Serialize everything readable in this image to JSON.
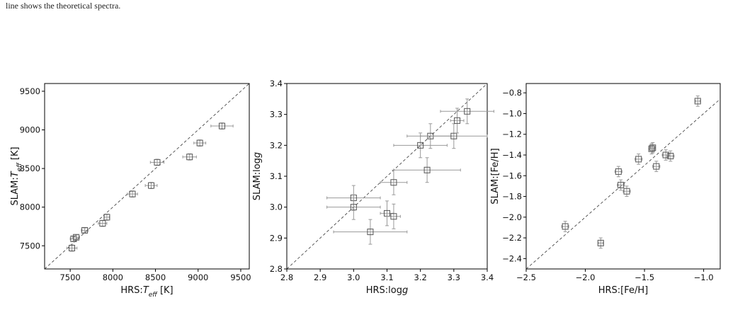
{
  "caption": "line shows the theoretical spectra.",
  "chart_data": [
    {
      "type": "scatter",
      "x_label": [
        "HRS:",
        "T",
        "eff",
        " [K]"
      ],
      "y_label": [
        "SLAM:",
        "T",
        "eff",
        " [K]"
      ],
      "xlim": [
        7200,
        9600
      ],
      "ylim": [
        7200,
        9600
      ],
      "xticks": [
        7500,
        8000,
        8500,
        9000,
        9500
      ],
      "yticks": [
        7500,
        8000,
        8500,
        9000,
        9500
      ],
      "series": [
        {
          "color": "#555555",
          "x": [
            7520,
            7540,
            7570,
            7670,
            7880,
            7930,
            8230,
            8450,
            8520,
            8900,
            9020,
            9280
          ],
          "values": [
            7470,
            7590,
            7610,
            7700,
            7790,
            7870,
            8170,
            8280,
            8580,
            8650,
            8830,
            9050
          ],
          "xerr": [
            60,
            40,
            40,
            40,
            50,
            30,
            60,
            70,
            80,
            80,
            70,
            130
          ],
          "yerr": [
            40,
            30,
            30,
            30,
            40,
            40,
            40,
            40,
            40,
            40,
            40,
            40
          ]
        }
      ]
    },
    {
      "type": "scatter",
      "x_label": [
        "HRS:log",
        "g"
      ],
      "y_label": [
        "SLAM:log",
        "g"
      ],
      "xlim": [
        2.8,
        3.4
      ],
      "ylim": [
        2.8,
        3.4
      ],
      "xticks": [
        2.8,
        2.9,
        {
          "value": 3,
          "label": "3.0"
        },
        3.1,
        3.2,
        3.3,
        3.4
      ],
      "yticks": [
        2.8,
        2.9,
        {
          "value": 3,
          "label": "3.0"
        },
        3.1,
        3.2,
        3.3,
        3.4
      ],
      "series": [
        {
          "color": "#555555",
          "x": [
            3.0,
            3.0,
            3.05,
            3.1,
            3.12,
            3.12,
            3.22,
            3.2,
            3.23,
            3.3,
            3.31,
            3.34
          ],
          "values": [
            3.03,
            3.0,
            2.92,
            2.98,
            2.97,
            3.08,
            3.12,
            3.2,
            3.23,
            3.23,
            3.28,
            3.31
          ],
          "xerr": [
            0.08,
            0.08,
            0.11,
            0.02,
            0.02,
            0.04,
            0.1,
            0.08,
            0.07,
            0.1,
            0.02,
            0.08
          ],
          "yerr": [
            0.04,
            0.04,
            0.04,
            0.04,
            0.04,
            0.04,
            0.04,
            0.04,
            0.04,
            0.04,
            0.04,
            0.04
          ]
        }
      ]
    },
    {
      "type": "scatter",
      "x_label": [
        "HRS:[Fe/H]"
      ],
      "y_label": [
        "SLAM:[Fe/H]"
      ],
      "xlim": [
        -2.5,
        -0.86
      ],
      "ylim": [
        -2.5,
        -0.71
      ],
      "xticks": [
        {
          "value": -2.5,
          "label": "−2.5"
        },
        {
          "value": -2,
          "label": "−2.0"
        },
        {
          "value": -1.5,
          "label": "−1.5"
        },
        {
          "value": -1,
          "label": "−1.0"
        }
      ],
      "yticks": [
        {
          "value": -2.4,
          "label": "−2.4"
        },
        {
          "value": -2.2,
          "label": "−2.2"
        },
        {
          "value": -2,
          "label": "−2.0"
        },
        {
          "value": -1.8,
          "label": "−1.8"
        },
        {
          "value": -1.6,
          "label": "−1.6"
        },
        {
          "value": -1.4,
          "label": "−1.4"
        },
        {
          "value": -1.2,
          "label": "−1.2"
        },
        {
          "value": -1,
          "label": "−1.0"
        },
        {
          "value": -0.8,
          "label": "−0.8"
        }
      ],
      "series": [
        {
          "color": "#555555",
          "x": [
            -1.05,
            -1.28,
            -1.32,
            -1.4,
            -1.43,
            -1.44,
            -1.55,
            -1.65,
            -1.7,
            -1.72,
            -1.87,
            -2.17
          ],
          "values": [
            -0.88,
            -1.41,
            -1.4,
            -1.51,
            -1.33,
            -1.34,
            -1.44,
            -1.75,
            -1.69,
            -1.56,
            -2.25,
            -2.09
          ],
          "xerr": [
            0.02,
            0.03,
            0.03,
            0.03,
            0.02,
            0.02,
            0.03,
            0.03,
            0.03,
            0.03,
            0.02,
            0.03
          ],
          "yerr": [
            0.05,
            0.05,
            0.05,
            0.05,
            0.05,
            0.05,
            0.05,
            0.05,
            0.05,
            0.05,
            0.05,
            0.05
          ]
        }
      ]
    }
  ]
}
